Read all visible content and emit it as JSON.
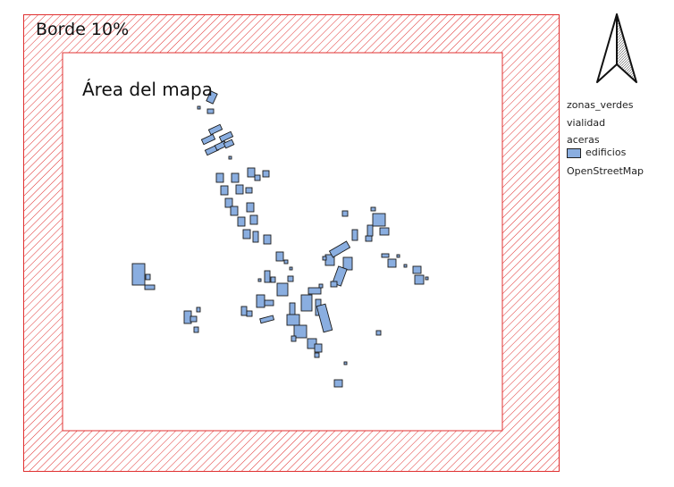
{
  "labels": {
    "border": "Borde 10%",
    "map_area": "Área del mapa"
  },
  "legend": {
    "items": [
      {
        "label": "zonas_verdes",
        "swatch": false
      },
      {
        "label": "vialidad",
        "swatch": false
      },
      {
        "label": "aceras",
        "swatch": false
      },
      {
        "label": "edificios",
        "swatch": true
      },
      {
        "label": "OpenStreetMap",
        "swatch": false
      }
    ]
  },
  "colors": {
    "border_hatch": "#e03030",
    "building_fill": "#8aaee0",
    "building_stroke": "#1a1a1a"
  },
  "icons": {
    "north_arrow": "north-arrow-icon"
  }
}
